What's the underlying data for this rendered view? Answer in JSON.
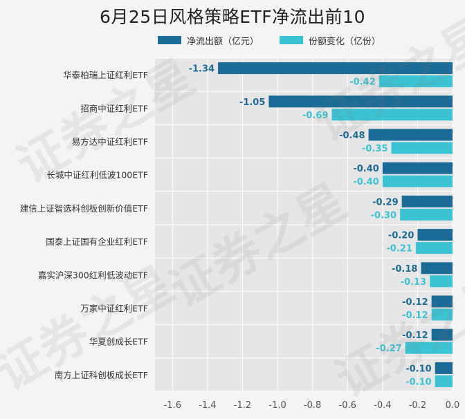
{
  "colors": {
    "net_outflow": "#1b6b97",
    "share_change": "#3cc3d3",
    "plot_bg": "#e6e6e6",
    "grid": "#ffffff"
  },
  "chart_data": {
    "type": "bar",
    "orientation": "horizontal",
    "title": "6月25日风格策略ETF净流出前10",
    "legend_position": "top",
    "categories": [
      "华泰柏瑞上证红利ETF",
      "招商中证红利ETF",
      "易方达中证红利ETF",
      "长城中证红利低波100ETF",
      "建信上证智选科创板创新价值ETF",
      "国泰上证国有企业红利ETF",
      "嘉实沪深300红利低波动ETF",
      "万家中证红利ETF",
      "华夏创成长ETF",
      "南方上证科创板成长ETF"
    ],
    "series": [
      {
        "name": "净流出额（亿元）",
        "values": [
          -1.34,
          -1.05,
          -0.48,
          -0.4,
          -0.29,
          -0.2,
          -0.18,
          -0.12,
          -0.12,
          -0.1
        ],
        "labels": [
          "-1.34",
          "-1.05",
          "-0.48",
          "-0.40",
          "-0.29",
          "-0.20",
          "-0.18",
          "-0.12",
          "-0.12",
          "-0.10"
        ]
      },
      {
        "name": "份额变化（亿份）",
        "values": [
          -0.42,
          -0.69,
          -0.35,
          -0.4,
          -0.3,
          -0.21,
          -0.13,
          -0.12,
          -0.27,
          -0.1
        ],
        "labels": [
          "-0.42",
          "-0.69",
          "-0.35",
          "-0.40",
          "-0.30",
          "-0.21",
          "-0.13",
          "-0.12",
          "-0.27",
          "-0.10"
        ]
      }
    ],
    "xlim": [
      -1.7,
      0
    ],
    "xticks": [
      -1.6,
      -1.4,
      -1.2,
      -1.0,
      -0.8,
      -0.6,
      -0.4,
      -0.2,
      0.0
    ],
    "xtick_labels": [
      "-1.6",
      "-1.4",
      "-1.2",
      "-1.0",
      "-0.8",
      "-0.6",
      "-0.4",
      "-0.2",
      "0.0"
    ],
    "grid": true
  }
}
